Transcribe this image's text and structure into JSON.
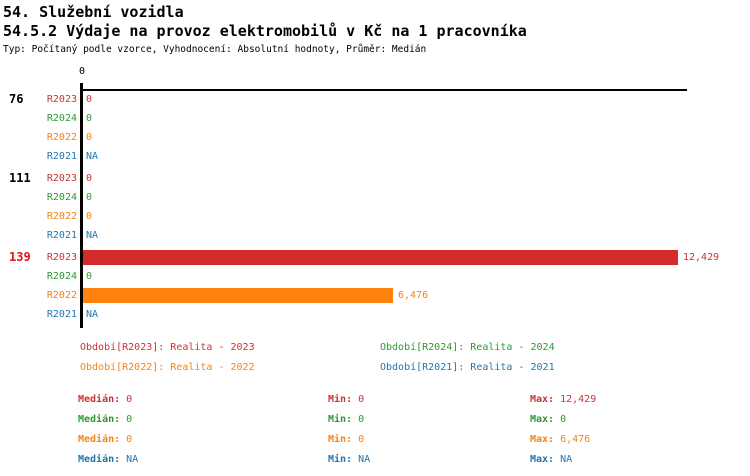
{
  "header": {
    "title_line1": "54. Služební vozidla",
    "title_line2": "54.5.2 Výdaje na provoz elektromobilů v Kč na 1 pracovníka",
    "subtitle": "Typ: Počítaný podle vzorce, Vyhodnocení: Absolutní hodnoty, Průměr: Medián"
  },
  "colors": {
    "R2023": "#cc3333",
    "R2024": "#2e9933",
    "R2022": "#f8820e",
    "R2021": "#2277b0",
    "bar_R2023": "#d32b2b",
    "bar_R2022": "#ff820e",
    "group_default": "#000000",
    "group_highlight": "#e81313",
    "axis": "#000000"
  },
  "chart_data": {
    "type": "bar",
    "orientation": "horizontal",
    "title": "54.5.2 Výdaje na provoz elektromobilů v Kč na 1 pracovníka",
    "x_axis": {
      "tick_labels": [
        "0"
      ],
      "min": 0,
      "max": 12429,
      "grid": false
    },
    "series_order": [
      "R2023",
      "R2024",
      "R2022",
      "R2021"
    ],
    "groups": [
      {
        "label": "76",
        "highlighted": false,
        "rows": [
          {
            "period": "R2023",
            "value": 0,
            "display": "0"
          },
          {
            "period": "R2024",
            "value": 0,
            "display": "0"
          },
          {
            "period": "R2022",
            "value": 0,
            "display": "0"
          },
          {
            "period": "R2021",
            "value": null,
            "display": "NA"
          }
        ]
      },
      {
        "label": "111",
        "highlighted": false,
        "rows": [
          {
            "period": "R2023",
            "value": 0,
            "display": "0"
          },
          {
            "period": "R2024",
            "value": 0,
            "display": "0"
          },
          {
            "period": "R2022",
            "value": 0,
            "display": "0"
          },
          {
            "period": "R2021",
            "value": null,
            "display": "NA"
          }
        ]
      },
      {
        "label": "139",
        "highlighted": true,
        "rows": [
          {
            "period": "R2023",
            "value": 12429,
            "display": "12,429"
          },
          {
            "period": "R2024",
            "value": 0,
            "display": "0"
          },
          {
            "period": "R2022",
            "value": 6476,
            "display": "6,476"
          },
          {
            "period": "R2021",
            "value": null,
            "display": "NA"
          }
        ]
      }
    ]
  },
  "legend": [
    {
      "period": "R2023",
      "label": "Období[R2023]: Realita - 2023"
    },
    {
      "period": "R2024",
      "label": "Období[R2024]: Realita - 2024"
    },
    {
      "period": "R2022",
      "label": "Období[R2022]: Realita - 2022"
    },
    {
      "period": "R2021",
      "label": "Období[R2021]: Realita - 2021"
    }
  ],
  "stats": [
    {
      "period": "R2023",
      "median_label": "Medián:",
      "median": "0",
      "min_label": "Min:",
      "min": "0",
      "max_label": "Max:",
      "max": "12,429"
    },
    {
      "period": "R2024",
      "median_label": "Medián:",
      "median": "0",
      "min_label": "Min:",
      "min": "0",
      "max_label": "Max:",
      "max": "0"
    },
    {
      "period": "R2022",
      "median_label": "Medián:",
      "median": "0",
      "min_label": "Min:",
      "min": "0",
      "max_label": "Max:",
      "max": "6,476"
    },
    {
      "period": "R2021",
      "median_label": "Medián:",
      "median": "NA",
      "min_label": "Min:",
      "min": "NA",
      "max_label": "Max:",
      "max": "NA"
    }
  ]
}
